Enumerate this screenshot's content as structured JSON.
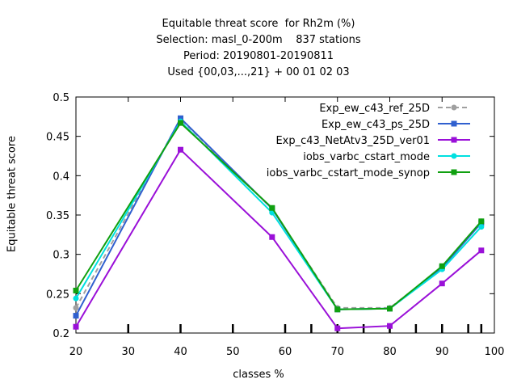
{
  "chart_data": {
    "type": "line",
    "title": [
      "Equitable threat score  for Rh2m (%)",
      "Selection: masl_0-200m    837 stations",
      "Period: 20190801-20190811",
      "Used {00,03,...,21} + 00 01 02 03"
    ],
    "xlabel": "classes %",
    "ylabel": "Equitable threat score",
    "xlim": [
      20,
      100
    ],
    "ylim": [
      0.2,
      0.5
    ],
    "xticks": [
      20,
      30,
      40,
      50,
      60,
      70,
      80,
      90,
      100
    ],
    "xtick_labels": [
      "20",
      "30",
      "40",
      "50",
      "60",
      "70",
      "80",
      "90",
      "100"
    ],
    "yticks": [
      0.2,
      0.25,
      0.3,
      0.35,
      0.4,
      0.45,
      0.5
    ],
    "ytick_labels": [
      "0.2",
      "0.25",
      "0.3",
      "0.35",
      "0.4",
      "0.45",
      "0.5"
    ],
    "class_marks": [
      30,
      40,
      50,
      60,
      65,
      70,
      75,
      80,
      85,
      90,
      95,
      97.5
    ],
    "grid": false,
    "legend_position": "top-right",
    "x": [
      20,
      40,
      57.5,
      70,
      80,
      90,
      97.5
    ],
    "series": [
      {
        "name": "Exp_ew_c43_ref_25D",
        "color": "#a0a0a0",
        "dash": true,
        "marker": "circle",
        "values": [
          0.232,
          0.472,
          0.358,
          0.232,
          0.232,
          0.283,
          0.342
        ]
      },
      {
        "name": "Exp_ew_c43_ps_25D",
        "color": "#3060cf",
        "dash": false,
        "marker": "square",
        "values": [
          0.222,
          0.473,
          0.358,
          0.23,
          0.231,
          0.283,
          0.34
        ]
      },
      {
        "name": "Exp_c43_NetAtv3_25D_ver01",
        "color": "#9a10d8",
        "dash": false,
        "marker": "square",
        "values": [
          0.208,
          0.433,
          0.322,
          0.206,
          0.209,
          0.263,
          0.305
        ]
      },
      {
        "name": "iobs_varbc_cstart_mode",
        "color": "#00e0e0",
        "dash": false,
        "marker": "circle",
        "values": [
          0.244,
          0.469,
          0.353,
          0.23,
          0.231,
          0.281,
          0.335
        ]
      },
      {
        "name": "iobs_varbc_cstart_mode_synop",
        "color": "#10a010",
        "dash": false,
        "marker": "square",
        "values": [
          0.254,
          0.467,
          0.359,
          0.23,
          0.231,
          0.285,
          0.342
        ]
      }
    ]
  }
}
